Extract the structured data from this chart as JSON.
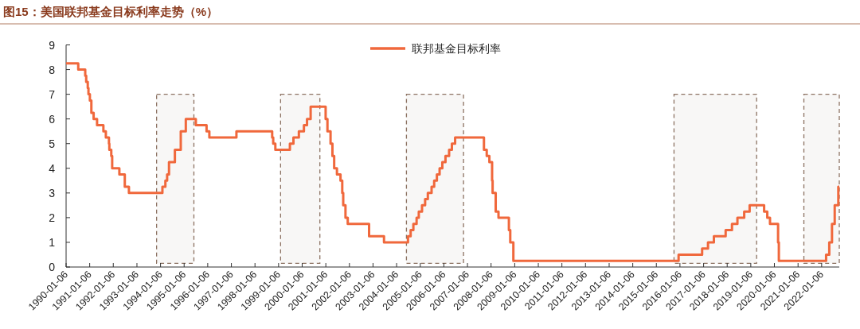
{
  "chart_data": {
    "type": "step",
    "title": "图15：美国联邦基金目标利率走势（%）",
    "legend": "top",
    "xlim": [
      "1990-01-06",
      "2022-10-06"
    ],
    "xticks": [
      "1990-01-06",
      "1991-01-06",
      "1992-01-06",
      "1993-01-06",
      "1994-01-06",
      "1995-01-06",
      "1996-01-06",
      "1997-01-06",
      "1998-01-06",
      "1999-01-06",
      "2000-01-06",
      "2001-01-06",
      "2002-01-06",
      "2003-01-06",
      "2004-01-06",
      "2005-01-06",
      "2006-01-06",
      "2007-01-06",
      "2008-01-06",
      "2009-01-06",
      "2010-01-06",
      "2011-01-06",
      "2012-01-06",
      "2013-01-06",
      "2014-01-06",
      "2015-01-06",
      "2016-01-06",
      "2017-01-06",
      "2018-01-06",
      "2019-01-06",
      "2020-01-06",
      "2021-01-06",
      "2022-01-06"
    ],
    "ylim": [
      0,
      9
    ],
    "yticks": [
      0,
      1,
      2,
      3,
      4,
      5,
      6,
      7,
      8,
      9
    ],
    "bands": [
      {
        "axis": "x",
        "from": "1993-11-06",
        "to": "1995-06-06",
        "color": "#8c7262"
      },
      {
        "axis": "x",
        "from": "1999-02-06",
        "to": "2000-10-06",
        "color": "#8c7262"
      },
      {
        "axis": "x",
        "from": "2004-06-06",
        "to": "2006-11-06",
        "color": "#8c7262"
      },
      {
        "axis": "x",
        "from": "2015-10-06",
        "to": "2019-04-06",
        "color": "#8c7262"
      },
      {
        "axis": "x",
        "from": "2021-04-06",
        "to": "2022-10-06",
        "color": "#8c7262"
      }
    ],
    "series": [
      {
        "name": "联邦基金目标利率",
        "color": "#f0683c",
        "x": [
          "1990-01-06",
          "1990-07-13",
          "1990-10-29",
          "1990-11-13",
          "1990-12-07",
          "1990-12-18",
          "1991-01-09",
          "1991-02-01",
          "1991-03-08",
          "1991-04-30",
          "1991-08-06",
          "1991-09-13",
          "1991-10-31",
          "1991-11-06",
          "1991-12-06",
          "1991-12-20",
          "1992-04-09",
          "1992-07-02",
          "1992-09-04",
          "1994-02-04",
          "1994-03-22",
          "1994-04-18",
          "1994-05-17",
          "1994-08-16",
          "1994-11-15",
          "1995-02-01",
          "1995-07-06",
          "1995-12-19",
          "1996-01-31",
          "1997-03-25",
          "1998-09-29",
          "1998-10-15",
          "1998-11-17",
          "1999-06-30",
          "1999-08-24",
          "1999-11-16",
          "2000-02-02",
          "2000-03-21",
          "2000-05-16",
          "2001-01-03",
          "2001-01-31",
          "2001-03-20",
          "2001-04-18",
          "2001-05-15",
          "2001-06-27",
          "2001-08-21",
          "2001-09-17",
          "2001-10-02",
          "2001-11-06",
          "2001-12-11",
          "2002-11-06",
          "2003-06-25",
          "2004-06-30",
          "2004-08-10",
          "2004-09-21",
          "2004-11-10",
          "2004-12-14",
          "2005-02-02",
          "2005-03-22",
          "2005-05-03",
          "2005-06-30",
          "2005-08-09",
          "2005-09-20",
          "2005-11-01",
          "2005-12-13",
          "2006-01-31",
          "2006-03-28",
          "2006-05-10",
          "2006-06-29",
          "2007-09-18",
          "2007-10-31",
          "2007-12-11",
          "2008-01-22",
          "2008-01-30",
          "2008-03-18",
          "2008-04-30",
          "2008-10-08",
          "2008-10-29",
          "2008-12-16",
          "2015-12-16",
          "2016-12-14",
          "2017-03-15",
          "2017-06-14",
          "2017-12-13",
          "2018-03-21",
          "2018-06-13",
          "2018-09-26",
          "2018-12-19",
          "2019-07-31",
          "2019-09-18",
          "2019-10-30",
          "2020-03-03",
          "2020-03-15",
          "2022-03-16",
          "2022-05-04",
          "2022-06-15",
          "2022-07-27",
          "2022-09-21",
          "2022-10-06"
        ],
        "values": [
          8.25,
          8.0,
          7.75,
          7.5,
          7.25,
          7.0,
          6.75,
          6.25,
          6.0,
          5.75,
          5.5,
          5.25,
          5.0,
          4.75,
          4.5,
          4.0,
          3.75,
          3.25,
          3.0,
          3.25,
          3.5,
          3.75,
          4.25,
          4.75,
          5.5,
          6.0,
          5.75,
          5.5,
          5.25,
          5.5,
          5.25,
          5.0,
          4.75,
          5.0,
          5.25,
          5.5,
          5.75,
          6.0,
          6.5,
          6.0,
          5.5,
          5.0,
          4.5,
          4.0,
          3.75,
          3.5,
          3.0,
          2.5,
          2.0,
          1.75,
          1.25,
          1.0,
          1.25,
          1.5,
          1.75,
          2.0,
          2.25,
          2.5,
          2.75,
          3.0,
          3.25,
          3.5,
          3.75,
          4.0,
          4.25,
          4.5,
          4.75,
          5.0,
          5.25,
          4.75,
          4.5,
          4.25,
          3.5,
          3.0,
          2.25,
          2.0,
          1.5,
          1.0,
          0.25,
          0.5,
          0.75,
          1.0,
          1.25,
          1.5,
          1.75,
          2.0,
          2.25,
          2.5,
          2.25,
          2.0,
          1.75,
          1.0,
          0.25,
          0.5,
          1.0,
          1.75,
          2.5,
          3.25,
          3.25
        ]
      }
    ]
  }
}
